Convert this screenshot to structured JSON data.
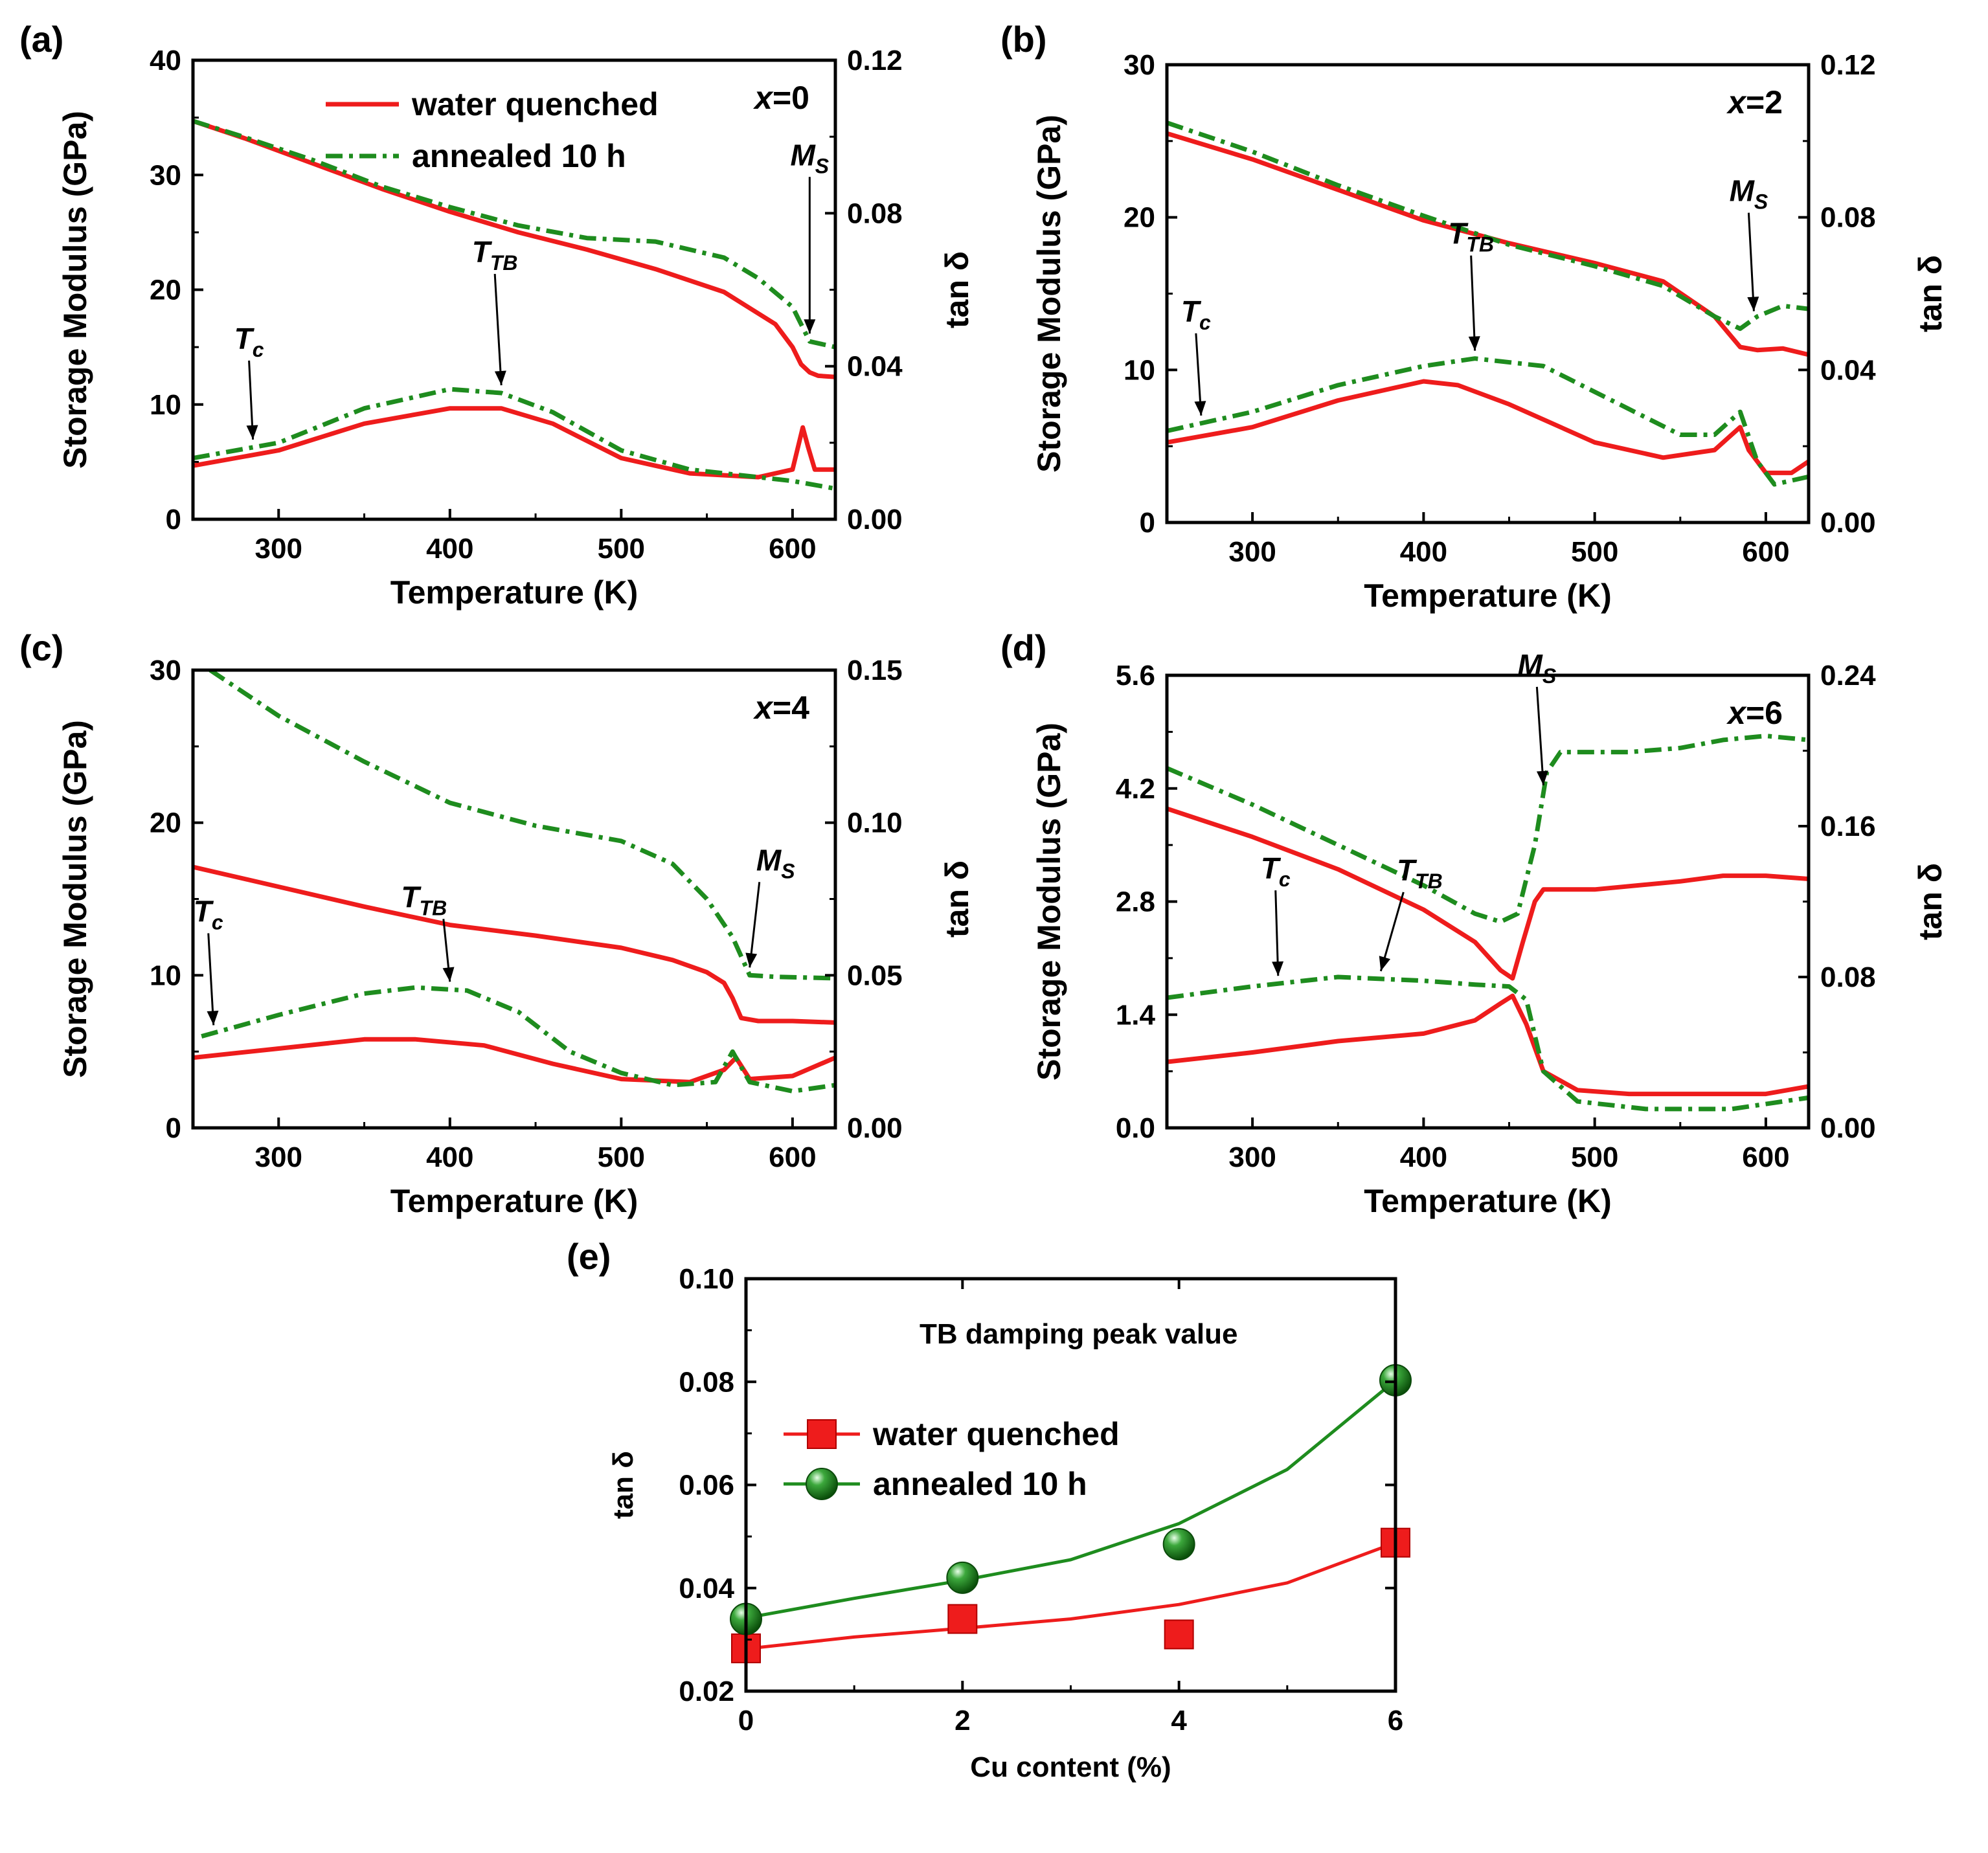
{
  "chart_data": [
    {
      "panel": "(a)",
      "type": "line",
      "composition": "x=0",
      "xlabel": "Temperature (K)",
      "ylabel": "Storage Modulus (GPa)",
      "y2label": "tan δ",
      "xlim": [
        250,
        625
      ],
      "ylim": [
        0,
        40
      ],
      "y2lim": [
        0,
        0.12
      ],
      "xticks": [
        "300",
        "400",
        "500",
        "600"
      ],
      "yticks": [
        "0",
        "10",
        "20",
        "30",
        "40"
      ],
      "y2ticks": [
        "0.00",
        "0.04",
        "0.08",
        "0.12"
      ],
      "legend": [
        "water quenched",
        "annealed 10 h"
      ],
      "series": [
        {
          "name": "water quenched",
          "kind": "modulus",
          "axis": "left",
          "style": "solid",
          "color": "#ee1c1c",
          "x": [
            250,
            280,
            320,
            360,
            400,
            440,
            480,
            520,
            560,
            590,
            600,
            605,
            610,
            615,
            625
          ],
          "y": [
            34.7,
            33.2,
            31.0,
            28.8,
            26.8,
            25.0,
            23.5,
            21.8,
            19.8,
            17.0,
            15.0,
            13.5,
            12.8,
            12.5,
            12.4
          ]
        },
        {
          "name": "annealed 10 h",
          "kind": "modulus",
          "axis": "left",
          "style": "dashdot",
          "color": "#1e8c1e",
          "x": [
            250,
            280,
            320,
            360,
            400,
            440,
            480,
            520,
            560,
            580,
            600,
            610,
            625
          ],
          "y": [
            34.7,
            33.3,
            31.3,
            29.0,
            27.2,
            25.6,
            24.5,
            24.2,
            22.8,
            21.0,
            18.5,
            15.5,
            15.0
          ]
        },
        {
          "name": "water quenched",
          "kind": "tan_delta",
          "axis": "right",
          "style": "solid",
          "color": "#ee1c1c",
          "x": [
            250,
            300,
            350,
            400,
            430,
            460,
            500,
            540,
            580,
            600,
            606,
            609,
            613,
            620,
            625
          ],
          "y": [
            0.014,
            0.018,
            0.025,
            0.029,
            0.029,
            0.025,
            0.016,
            0.012,
            0.011,
            0.013,
            0.024,
            0.019,
            0.013,
            0.013,
            0.013
          ]
        },
        {
          "name": "annealed 10 h",
          "kind": "tan_delta",
          "axis": "right",
          "style": "dashdot",
          "color": "#1e8c1e",
          "x": [
            250,
            300,
            350,
            400,
            430,
            460,
            500,
            540,
            580,
            600,
            625
          ],
          "y": [
            0.016,
            0.02,
            0.029,
            0.034,
            0.033,
            0.028,
            0.018,
            0.013,
            0.011,
            0.01,
            0.008
          ]
        }
      ],
      "annotations": [
        {
          "main": "T",
          "sub": "c",
          "x": 285
        },
        {
          "main": "T",
          "sub": "TB",
          "x": 430
        },
        {
          "main": "M",
          "sub": "S",
          "x": 610
        }
      ]
    },
    {
      "panel": "(b)",
      "type": "line",
      "composition": "x=2",
      "xlabel": "Temperature (K)",
      "ylabel": "Storage Modulus (GPa)",
      "y2label": "tan δ",
      "xlim": [
        250,
        625
      ],
      "ylim": [
        0,
        30
      ],
      "y2lim": [
        0,
        0.12
      ],
      "xticks": [
        "300",
        "400",
        "500",
        "600"
      ],
      "yticks": [
        "0",
        "10",
        "20",
        "30"
      ],
      "y2ticks": [
        "0.00",
        "0.04",
        "0.08",
        "0.12"
      ],
      "series": [
        {
          "name": "water quenched",
          "kind": "modulus",
          "axis": "left",
          "style": "solid",
          "color": "#ee1c1c",
          "x": [
            250,
            300,
            350,
            400,
            450,
            500,
            540,
            570,
            585,
            595,
            610,
            625
          ],
          "y": [
            25.5,
            23.8,
            21.8,
            19.8,
            18.3,
            17.0,
            15.8,
            13.5,
            11.5,
            11.3,
            11.4,
            11.0
          ]
        },
        {
          "name": "annealed 10 h",
          "kind": "modulus",
          "axis": "left",
          "style": "dashdot",
          "color": "#1e8c1e",
          "x": [
            250,
            300,
            350,
            400,
            450,
            500,
            540,
            570,
            585,
            595,
            610,
            625
          ],
          "y": [
            26.2,
            24.3,
            22.1,
            20.1,
            18.2,
            16.8,
            15.5,
            13.5,
            12.7,
            13.5,
            14.2,
            14.0
          ]
        },
        {
          "name": "water quenched",
          "kind": "tan_delta",
          "axis": "right",
          "style": "solid",
          "color": "#ee1c1c",
          "x": [
            250,
            300,
            350,
            400,
            420,
            450,
            500,
            540,
            570,
            585,
            590,
            600,
            615,
            625
          ],
          "y": [
            0.021,
            0.025,
            0.032,
            0.037,
            0.036,
            0.031,
            0.021,
            0.017,
            0.019,
            0.025,
            0.019,
            0.013,
            0.013,
            0.016
          ]
        },
        {
          "name": "annealed 10 h",
          "kind": "tan_delta",
          "axis": "right",
          "style": "dashdot",
          "color": "#1e8c1e",
          "x": [
            250,
            300,
            350,
            400,
            430,
            470,
            510,
            550,
            570,
            585,
            595,
            605,
            625
          ],
          "y": [
            0.024,
            0.029,
            0.036,
            0.041,
            0.043,
            0.041,
            0.032,
            0.023,
            0.023,
            0.029,
            0.016,
            0.01,
            0.012
          ]
        }
      ],
      "annotations": [
        {
          "main": "T",
          "sub": "c",
          "x": 270
        },
        {
          "main": "T",
          "sub": "TB",
          "x": 430
        },
        {
          "main": "M",
          "sub": "S",
          "x": 593
        }
      ]
    },
    {
      "panel": "(c)",
      "type": "line",
      "composition": "x=4",
      "xlabel": "Temperature (K)",
      "ylabel": "Storage Modulus (GPa)",
      "y2label": "tan δ",
      "xlim": [
        250,
        625
      ],
      "ylim": [
        0,
        30
      ],
      "y2lim": [
        0,
        0.15
      ],
      "xticks": [
        "300",
        "400",
        "500",
        "600"
      ],
      "yticks": [
        "0",
        "10",
        "20",
        "30"
      ],
      "y2ticks": [
        "0.00",
        "0.05",
        "0.10",
        "0.15"
      ],
      "series": [
        {
          "name": "water quenched",
          "kind": "modulus",
          "axis": "left",
          "style": "solid",
          "color": "#ee1c1c",
          "x": [
            250,
            300,
            350,
            400,
            450,
            500,
            530,
            550,
            560,
            565,
            570,
            580,
            600,
            625
          ],
          "y": [
            17.1,
            15.8,
            14.5,
            13.3,
            12.6,
            11.8,
            11.0,
            10.2,
            9.5,
            8.5,
            7.2,
            7.0,
            7.0,
            6.9
          ]
        },
        {
          "name": "annealed 10 h",
          "kind": "modulus",
          "axis": "left",
          "style": "dashdot",
          "color": "#1e8c1e",
          "x": [
            260,
            300,
            350,
            400,
            450,
            500,
            530,
            550,
            565,
            575,
            590,
            625
          ],
          "y": [
            30.0,
            27.0,
            24.0,
            21.3,
            19.8,
            18.8,
            17.3,
            15.0,
            12.5,
            10.0,
            9.9,
            9.8
          ]
        },
        {
          "name": "water quenched",
          "kind": "tan_delta",
          "axis": "right",
          "style": "solid",
          "color": "#ee1c1c",
          "x": [
            250,
            300,
            350,
            380,
            420,
            460,
            500,
            540,
            560,
            567,
            575,
            600,
            625
          ],
          "y": [
            0.023,
            0.026,
            0.029,
            0.029,
            0.027,
            0.021,
            0.016,
            0.015,
            0.019,
            0.023,
            0.016,
            0.017,
            0.023
          ]
        },
        {
          "name": "annealed 10 h",
          "kind": "tan_delta",
          "axis": "right",
          "style": "dashdot",
          "color": "#1e8c1e",
          "x": [
            255,
            300,
            350,
            380,
            410,
            440,
            470,
            500,
            530,
            555,
            565,
            575,
            600,
            625
          ],
          "y": [
            0.03,
            0.037,
            0.044,
            0.046,
            0.045,
            0.038,
            0.025,
            0.018,
            0.014,
            0.015,
            0.025,
            0.015,
            0.012,
            0.014
          ]
        }
      ],
      "annotations": [
        {
          "main": "T",
          "sub": "c",
          "x": 262
        },
        {
          "main": "T",
          "sub": "TB",
          "x": 400
        },
        {
          "main": "M",
          "sub": "S",
          "x": 575
        }
      ]
    },
    {
      "panel": "(d)",
      "type": "line",
      "composition": "x=6",
      "xlabel": "Temperature (K)",
      "ylabel": "Storage Modulus (GPa)",
      "y2label": "tan δ",
      "xlim": [
        250,
        625
      ],
      "ylim": [
        0,
        5.6
      ],
      "y2lim": [
        0,
        0.24
      ],
      "xticks": [
        "300",
        "400",
        "500",
        "600"
      ],
      "yticks": [
        "0.0",
        "1.4",
        "2.8",
        "4.2",
        "5.6"
      ],
      "y2ticks": [
        "0.00",
        "0.08",
        "0.16",
        "0.24"
      ],
      "series": [
        {
          "name": "water quenched",
          "kind": "modulus",
          "axis": "left",
          "style": "solid",
          "color": "#ee1c1c",
          "x": [
            250,
            300,
            350,
            400,
            430,
            445,
            452,
            458,
            465,
            470,
            500,
            550,
            575,
            600,
            625
          ],
          "y": [
            3.95,
            3.6,
            3.2,
            2.7,
            2.3,
            1.95,
            1.85,
            2.3,
            2.8,
            2.95,
            2.95,
            3.05,
            3.12,
            3.12,
            3.08
          ]
        },
        {
          "name": "annealed 10 h",
          "kind": "modulus",
          "axis": "left",
          "style": "dashdot",
          "color": "#1e8c1e",
          "x": [
            250,
            300,
            350,
            400,
            430,
            445,
            455,
            465,
            472,
            480,
            520,
            550,
            575,
            600,
            625
          ],
          "y": [
            4.45,
            4.0,
            3.5,
            3.0,
            2.65,
            2.55,
            2.65,
            3.5,
            4.4,
            4.65,
            4.65,
            4.7,
            4.8,
            4.85,
            4.8
          ]
        },
        {
          "name": "water quenched",
          "kind": "tan_delta",
          "axis": "right",
          "style": "solid",
          "color": "#ee1c1c",
          "x": [
            250,
            300,
            350,
            400,
            430,
            445,
            452,
            460,
            470,
            490,
            520,
            560,
            600,
            625
          ],
          "y": [
            0.035,
            0.04,
            0.046,
            0.05,
            0.057,
            0.066,
            0.07,
            0.055,
            0.03,
            0.02,
            0.018,
            0.018,
            0.018,
            0.022
          ]
        },
        {
          "name": "annealed 10 h",
          "kind": "tan_delta",
          "axis": "right",
          "style": "dashdot",
          "color": "#1e8c1e",
          "x": [
            250,
            300,
            350,
            400,
            430,
            450,
            460,
            470,
            490,
            530,
            580,
            625
          ],
          "y": [
            0.069,
            0.075,
            0.08,
            0.078,
            0.076,
            0.075,
            0.068,
            0.03,
            0.014,
            0.01,
            0.01,
            0.016
          ]
        }
      ],
      "annotations": [
        {
          "main": "T",
          "sub": "c",
          "x": 315
        },
        {
          "main": "T",
          "sub": "TB",
          "x": 375
        },
        {
          "main": "M",
          "sub": "S",
          "x": 470
        }
      ]
    },
    {
      "panel": "(e)",
      "type": "scatter",
      "title": "TB damping peak value",
      "xlabel": "Cu content (%)",
      "ylabel": "tan δ",
      "xlim": [
        0,
        6
      ],
      "ylim": [
        0.02,
        0.1
      ],
      "xticks": [
        "0",
        "2",
        "4",
        "6"
      ],
      "yticks": [
        "0.02",
        "0.04",
        "0.06",
        "0.08",
        "0.10"
      ],
      "legend": [
        "water quenched",
        "annealed 10 h"
      ],
      "series": [
        {
          "name": "water quenched",
          "marker": "square",
          "color": "#ee1c1c",
          "x": [
            0,
            2,
            4,
            6
          ],
          "y": [
            0.0283,
            0.034,
            0.031,
            0.0488
          ],
          "fit_x": [
            0,
            1,
            2,
            3,
            4,
            5,
            6
          ],
          "fit_y": [
            0.0282,
            0.0305,
            0.0322,
            0.034,
            0.0368,
            0.041,
            0.0488
          ]
        },
        {
          "name": "annealed 10 h",
          "marker": "sphere",
          "color": "#1e8c1e",
          "x": [
            0,
            2,
            4,
            6
          ],
          "y": [
            0.034,
            0.042,
            0.0485,
            0.0803
          ],
          "fit_x": [
            0,
            1,
            2,
            3,
            4,
            5,
            6
          ],
          "fit_y": [
            0.0342,
            0.038,
            0.0415,
            0.0455,
            0.0525,
            0.063,
            0.0803
          ]
        }
      ]
    }
  ]
}
